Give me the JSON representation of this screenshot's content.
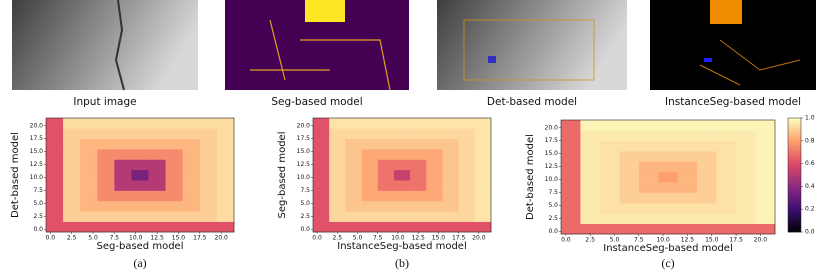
{
  "images": [
    {
      "caption": "Input image"
    },
    {
      "caption": "Seg-based model"
    },
    {
      "caption": "Det-based model"
    },
    {
      "caption": "InstanceSeg-based model"
    }
  ],
  "chart_data": [
    {
      "type": "heatmap",
      "panel_label": "(a)",
      "xlabel": "Seg-based model",
      "ylabel": "Det-based model",
      "xlim": [
        -0.5,
        21.5
      ],
      "ylim": [
        -0.5,
        21.5
      ],
      "xticks": [
        {
          "value": 0,
          "label": "0.0"
        },
        2.5,
        {
          "value": 5,
          "label": "5.0"
        },
        7.5,
        {
          "value": 10,
          "label": "10.0"
        },
        12.5,
        {
          "value": 15,
          "label": "15.0"
        },
        17.5,
        {
          "value": 20,
          "label": "20.0"
        }
      ],
      "yticks": [
        {
          "value": 0,
          "label": "0.0"
        },
        2.5,
        {
          "value": 5,
          "label": "5.0"
        },
        7.5,
        {
          "value": 10,
          "label": "10.0"
        },
        12.5,
        {
          "value": 15,
          "label": "15.0"
        },
        17.5,
        {
          "value": 20,
          "label": "20.0"
        }
      ],
      "x_edges": [
        -0.5,
        1.5,
        3.5,
        5.5,
        7.5,
        9.5,
        11.5,
        13.5,
        15.5,
        17.5,
        19.5,
        21.5
      ],
      "y_edges": [
        -0.5,
        1.5,
        3.5,
        5.5,
        7.5,
        9.5,
        11.5,
        13.5,
        15.5,
        17.5,
        19.5,
        21.5
      ],
      "values": [
        [
          0.62,
          0.62,
          0.62,
          0.62,
          0.62,
          0.62,
          0.62,
          0.62,
          0.62,
          0.62,
          0.62
        ],
        [
          0.62,
          0.9,
          0.9,
          0.9,
          0.9,
          0.9,
          0.9,
          0.9,
          0.9,
          0.9,
          0.93
        ],
        [
          0.62,
          0.9,
          0.85,
          0.85,
          0.85,
          0.85,
          0.85,
          0.85,
          0.85,
          0.9,
          0.93
        ],
        [
          0.62,
          0.9,
          0.85,
          0.75,
          0.75,
          0.75,
          0.75,
          0.75,
          0.85,
          0.9,
          0.93
        ],
        [
          0.62,
          0.9,
          0.85,
          0.75,
          0.5,
          0.5,
          0.5,
          0.75,
          0.85,
          0.9,
          0.93
        ],
        [
          0.62,
          0.9,
          0.85,
          0.75,
          0.5,
          0.35,
          0.5,
          0.75,
          0.85,
          0.9,
          0.93
        ],
        [
          0.62,
          0.9,
          0.85,
          0.75,
          0.5,
          0.5,
          0.5,
          0.75,
          0.85,
          0.9,
          0.93
        ],
        [
          0.62,
          0.9,
          0.85,
          0.75,
          0.75,
          0.75,
          0.75,
          0.75,
          0.85,
          0.9,
          0.93
        ],
        [
          0.62,
          0.9,
          0.85,
          0.85,
          0.85,
          0.85,
          0.85,
          0.85,
          0.85,
          0.9,
          0.93
        ],
        [
          0.62,
          0.9,
          0.9,
          0.9,
          0.9,
          0.9,
          0.9,
          0.9,
          0.9,
          0.9,
          0.93
        ],
        [
          0.62,
          0.93,
          0.93,
          0.93,
          0.93,
          0.93,
          0.93,
          0.93,
          0.93,
          0.93,
          0.93
        ]
      ]
    },
    {
      "type": "heatmap",
      "panel_label": "(b)",
      "xlabel": "InstanceSeg-based model",
      "ylabel": "Seg-based model",
      "xlim": [
        -0.5,
        21.5
      ],
      "ylim": [
        -0.5,
        21.5
      ],
      "xticks": [
        {
          "value": 0,
          "label": "0.0"
        },
        2.5,
        {
          "value": 5,
          "label": "5.0"
        },
        7.5,
        {
          "value": 10,
          "label": "10.0"
        },
        12.5,
        {
          "value": 15,
          "label": "15.0"
        },
        17.5,
        {
          "value": 20,
          "label": "20.0"
        }
      ],
      "yticks": [
        {
          "value": 0,
          "label": "0.0"
        },
        2.5,
        {
          "value": 5,
          "label": "5.0"
        },
        7.5,
        {
          "value": 10,
          "label": "10.0"
        },
        12.5,
        {
          "value": 15,
          "label": "15.0"
        },
        17.5,
        {
          "value": 20,
          "label": "20.0"
        }
      ],
      "x_edges": [
        -0.5,
        1.5,
        3.5,
        5.5,
        7.5,
        9.5,
        11.5,
        13.5,
        15.5,
        17.5,
        19.5,
        21.5
      ],
      "y_edges": [
        -0.5,
        1.5,
        3.5,
        5.5,
        7.5,
        9.5,
        11.5,
        13.5,
        15.5,
        17.5,
        19.5,
        21.5
      ],
      "values": [
        [
          0.62,
          0.62,
          0.62,
          0.62,
          0.62,
          0.62,
          0.62,
          0.62,
          0.62,
          0.62,
          0.62
        ],
        [
          0.62,
          0.92,
          0.92,
          0.92,
          0.92,
          0.92,
          0.92,
          0.92,
          0.92,
          0.92,
          0.95
        ],
        [
          0.62,
          0.92,
          0.88,
          0.88,
          0.88,
          0.88,
          0.88,
          0.88,
          0.88,
          0.92,
          0.95
        ],
        [
          0.62,
          0.92,
          0.88,
          0.82,
          0.82,
          0.82,
          0.82,
          0.82,
          0.88,
          0.92,
          0.95
        ],
        [
          0.62,
          0.92,
          0.88,
          0.82,
          0.7,
          0.7,
          0.7,
          0.82,
          0.88,
          0.92,
          0.95
        ],
        [
          0.62,
          0.92,
          0.88,
          0.82,
          0.7,
          0.55,
          0.7,
          0.82,
          0.88,
          0.92,
          0.95
        ],
        [
          0.62,
          0.92,
          0.88,
          0.82,
          0.7,
          0.7,
          0.7,
          0.82,
          0.88,
          0.92,
          0.95
        ],
        [
          0.62,
          0.92,
          0.88,
          0.82,
          0.82,
          0.82,
          0.82,
          0.82,
          0.88,
          0.92,
          0.95
        ],
        [
          0.62,
          0.92,
          0.88,
          0.88,
          0.88,
          0.88,
          0.88,
          0.88,
          0.88,
          0.92,
          0.95
        ],
        [
          0.62,
          0.92,
          0.92,
          0.92,
          0.92,
          0.92,
          0.92,
          0.92,
          0.92,
          0.92,
          0.95
        ],
        [
          0.62,
          0.95,
          0.95,
          0.95,
          0.95,
          0.95,
          0.95,
          0.95,
          0.95,
          0.95,
          0.95
        ]
      ]
    },
    {
      "type": "heatmap",
      "panel_label": "(c)",
      "xlabel": "InstanceSeg-based model",
      "ylabel": "Det-based model",
      "xlim": [
        -0.5,
        21.5
      ],
      "ylim": [
        -0.5,
        21.5
      ],
      "xticks": [
        {
          "value": 0,
          "label": "0.0"
        },
        2.5,
        {
          "value": 5,
          "label": "5.0"
        },
        7.5,
        {
          "value": 10,
          "label": "10.0"
        },
        12.5,
        {
          "value": 15,
          "label": "15.0"
        },
        17.5,
        {
          "value": 20,
          "label": "20.0"
        }
      ],
      "yticks": [
        {
          "value": 0,
          "label": "0.0"
        },
        2.5,
        {
          "value": 5,
          "label": "5.0"
        },
        7.5,
        {
          "value": 10,
          "label": "10.0"
        },
        12.5,
        {
          "value": 15,
          "label": "15.0"
        },
        17.5,
        {
          "value": 20,
          "label": "20.0"
        }
      ],
      "x_edges": [
        -0.5,
        1.5,
        3.5,
        5.5,
        7.5,
        9.5,
        11.5,
        13.5,
        15.5,
        17.5,
        19.5,
        21.5
      ],
      "y_edges": [
        -0.5,
        1.5,
        3.5,
        5.5,
        7.5,
        9.5,
        11.5,
        13.5,
        15.5,
        17.5,
        19.5,
        21.5
      ],
      "values": [
        [
          0.68,
          0.68,
          0.68,
          0.68,
          0.68,
          0.68,
          0.68,
          0.68,
          0.68,
          0.68,
          0.68
        ],
        [
          0.68,
          0.96,
          0.96,
          0.96,
          0.96,
          0.96,
          0.96,
          0.96,
          0.96,
          0.96,
          0.98
        ],
        [
          0.68,
          0.96,
          0.94,
          0.94,
          0.94,
          0.94,
          0.94,
          0.94,
          0.94,
          0.96,
          0.98
        ],
        [
          0.68,
          0.96,
          0.94,
          0.9,
          0.9,
          0.9,
          0.9,
          0.9,
          0.94,
          0.96,
          0.98
        ],
        [
          0.68,
          0.96,
          0.94,
          0.9,
          0.85,
          0.85,
          0.85,
          0.9,
          0.94,
          0.96,
          0.98
        ],
        [
          0.68,
          0.96,
          0.94,
          0.9,
          0.85,
          0.8,
          0.85,
          0.9,
          0.94,
          0.96,
          0.98
        ],
        [
          0.68,
          0.96,
          0.94,
          0.9,
          0.85,
          0.85,
          0.85,
          0.9,
          0.94,
          0.96,
          0.98
        ],
        [
          0.68,
          0.96,
          0.94,
          0.9,
          0.9,
          0.9,
          0.9,
          0.9,
          0.94,
          0.96,
          0.98
        ],
        [
          0.68,
          0.96,
          0.94,
          0.94,
          0.94,
          0.94,
          0.94,
          0.94,
          0.94,
          0.96,
          0.98
        ],
        [
          0.68,
          0.96,
          0.96,
          0.96,
          0.96,
          0.96,
          0.96,
          0.96,
          0.96,
          0.96,
          0.98
        ],
        [
          0.68,
          0.98,
          0.98,
          0.98,
          0.98,
          0.98,
          0.98,
          0.98,
          0.98,
          0.98,
          0.98
        ]
      ],
      "clim": [
        0,
        1
      ],
      "colorbar_ticks": [
        {
          "value": 0,
          "label": "0.0"
        },
        0.2,
        0.4,
        0.6,
        0.8,
        {
          "value": 1,
          "label": "1.0"
        }
      ]
    }
  ]
}
